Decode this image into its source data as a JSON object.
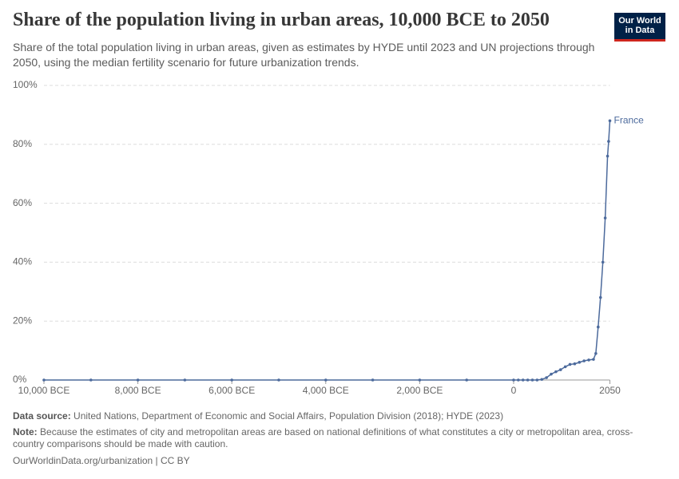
{
  "header": {
    "title": "Share of the population living in urban areas, 10,000 BCE to 2050",
    "subtitle": "Share of the total population living in urban areas, given as estimates by HYDE until 2023 and UN projections through 2050, using the median fertility scenario for future urbanization trends.",
    "logo": [
      "Our World",
      "in Data"
    ]
  },
  "chart_data": {
    "type": "line",
    "x": [
      -10000,
      -9000,
      -8000,
      -7000,
      -6000,
      -5000,
      -4000,
      -3000,
      -2000,
      -1000,
      0,
      100,
      200,
      300,
      400,
      500,
      600,
      700,
      800,
      900,
      1000,
      1100,
      1200,
      1300,
      1400,
      1500,
      1600,
      1700,
      1750,
      1800,
      1850,
      1900,
      1950,
      2000,
      2023,
      2050
    ],
    "series": [
      {
        "name": "France",
        "color": "#4c6a9c",
        "values": [
          0,
          0,
          0,
          0,
          0,
          0,
          0,
          0,
          0,
          0,
          0,
          0,
          0,
          0,
          0,
          0,
          0.2,
          0.8,
          2,
          2.8,
          3.5,
          4.5,
          5.3,
          5.5,
          6,
          6.5,
          6.8,
          7,
          9,
          18,
          28,
          40,
          55,
          76,
          81,
          88
        ]
      }
    ],
    "xlim": [
      -10000,
      2050
    ],
    "xticks": [
      {
        "value": -10000,
        "label": "10,000 BCE"
      },
      {
        "value": -8000,
        "label": "8,000 BCE"
      },
      {
        "value": -6000,
        "label": "6,000 BCE"
      },
      {
        "value": -4000,
        "label": "4,000 BCE"
      },
      {
        "value": -2000,
        "label": "2,000 BCE"
      },
      0,
      2050
    ],
    "ylim": [
      0,
      100
    ],
    "yticks": [
      {
        "value": 0,
        "label": "0%"
      },
      {
        "value": 20,
        "label": "20%"
      },
      {
        "value": 40,
        "label": "40%"
      },
      {
        "value": 60,
        "label": "60%"
      },
      {
        "value": 80,
        "label": "80%"
      },
      {
        "value": 100,
        "label": "100%"
      }
    ],
    "grid": true
  },
  "footer": {
    "source_label": "Data source:",
    "source": "United Nations, Department of Economic and Social Affairs, Population Division (2018); HYDE (2023)",
    "note_label": "Note:",
    "note": "Because the estimates of city and metropolitan areas are based on national definitions of what constitutes a city or metropolitan area, cross-country comparisons should be made with caution.",
    "url": "OurWorldinData.org/urbanization | CC BY"
  }
}
